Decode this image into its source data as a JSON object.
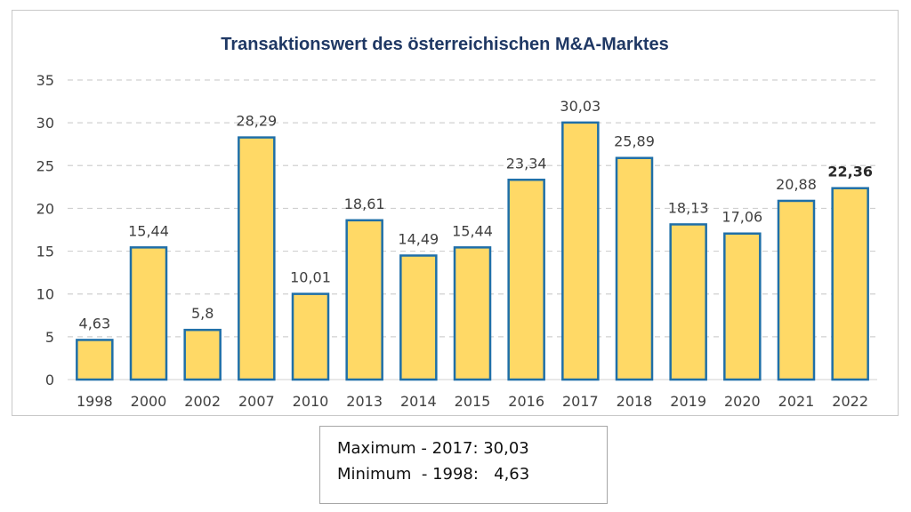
{
  "chart_data": {
    "type": "bar",
    "title": "Transaktionswert des österreichischen M&A-Marktes",
    "xlabel": "",
    "ylabel": "",
    "categories": [
      "1998",
      "2000",
      "2002",
      "2007",
      "2010",
      "2013",
      "2014",
      "2015",
      "2016",
      "2017",
      "2018",
      "2019",
      "2020",
      "2021",
      "2022"
    ],
    "values": [
      4.63,
      15.44,
      5.8,
      28.29,
      10.01,
      18.61,
      14.49,
      15.44,
      23.34,
      30.03,
      25.89,
      18.13,
      17.06,
      20.88,
      22.36
    ],
    "value_labels": [
      "4,63",
      "15,44",
      "5,8",
      "28,29",
      "10,01",
      "18,61",
      "14,49",
      "15,44",
      "23,34",
      "30,03",
      "25,89",
      "18,13",
      "17,06",
      "20,88",
      "22,36"
    ],
    "bold_label_index": 14,
    "ylim": [
      0,
      35
    ],
    "yticks": [
      0,
      5,
      10,
      15,
      20,
      25,
      30,
      35
    ],
    "grid": true,
    "grid_style": "dashed",
    "bar_fill": "#FFD966",
    "bar_stroke": "#1F6FA8"
  },
  "summary": {
    "max_line": "Maximum - 2017: 30,03",
    "min_line": "Minimum  - 1998:   4,63"
  }
}
